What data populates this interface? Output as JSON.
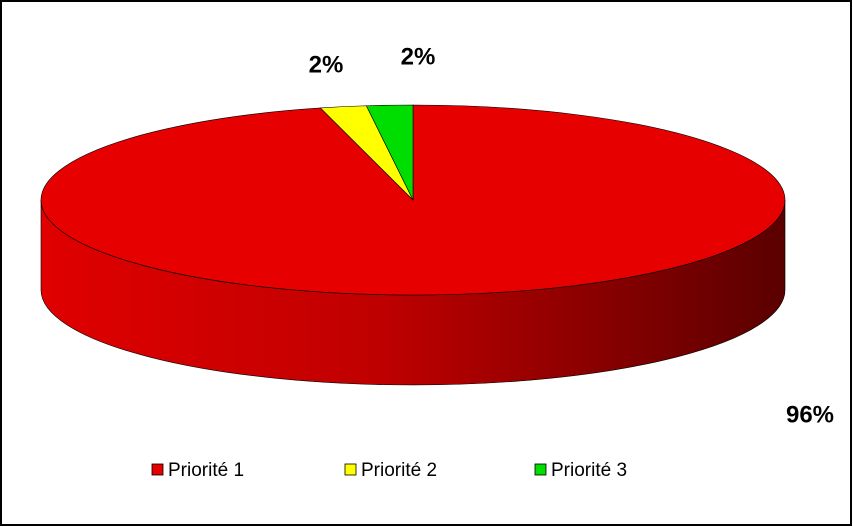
{
  "chart_data": {
    "type": "pie",
    "categories": [
      "Priorité 1",
      "Priorité 2",
      "Priorité 3"
    ],
    "values": [
      96,
      2,
      2
    ],
    "value_labels": [
      "96%",
      "2%",
      "2%"
    ],
    "colors": [
      "#e60000",
      "#ffff00",
      "#00dd00"
    ],
    "legend": "bottom"
  }
}
